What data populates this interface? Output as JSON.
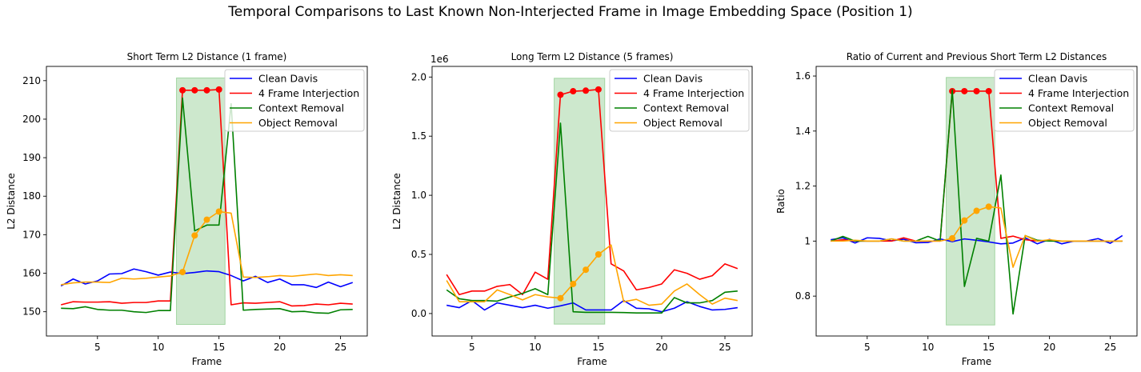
{
  "suptitle": "Temporal Comparisons to Last Known Non-Interjected Frame in Image Embedding Space (Position 1)",
  "legend_labels": [
    "Clean Davis",
    "4 Frame Interjection",
    "Context Removal",
    "Object Removal"
  ],
  "chart_data": [
    {
      "type": "line",
      "title": "Short Term L2 Distance (1 frame)",
      "xlabel": "Frame",
      "ylabel": "L2 Distance",
      "xlim": [
        0.8,
        27.2
      ],
      "ylim": [
        143.7,
        213.7
      ],
      "xticks": [
        5,
        10,
        15,
        20,
        25
      ],
      "yticks": [
        150,
        160,
        170,
        180,
        190,
        200,
        210
      ],
      "offset_label": "",
      "shaded_region": {
        "x": [
          11.5,
          15.5
        ],
        "y": [
          146.7,
          210.7
        ],
        "color": "#2ca02c"
      },
      "legend_position": "upper right",
      "series": [
        {
          "name": "Clean Davis",
          "color": "#0000ff",
          "x": [
            2,
            3,
            4,
            5,
            6,
            7,
            8,
            9,
            10,
            11,
            12,
            13,
            14,
            15,
            16,
            17,
            18,
            19,
            20,
            21,
            22,
            23,
            24,
            25,
            26
          ],
          "y": [
            156.7,
            158.5,
            157.2,
            158.0,
            159.8,
            159.9,
            161.1,
            160.4,
            159.5,
            160.3,
            159.9,
            160.2,
            160.6,
            160.4,
            159.4,
            158.0,
            159.2,
            157.6,
            158.5,
            157.0,
            157.0,
            156.3,
            157.7,
            156.5,
            157.6
          ]
        },
        {
          "name": "4 Frame Interjection",
          "color": "#ff0000",
          "markers": [
            12,
            13,
            14,
            15
          ],
          "x": [
            2,
            3,
            4,
            5,
            6,
            7,
            8,
            9,
            10,
            11,
            12,
            13,
            14,
            15,
            16,
            17,
            18,
            19,
            20,
            21,
            22,
            23,
            24,
            25,
            26
          ],
          "y": [
            151.8,
            152.6,
            152.5,
            152.5,
            152.6,
            152.2,
            152.4,
            152.4,
            152.8,
            152.8,
            207.5,
            207.5,
            207.5,
            207.7,
            151.8,
            152.3,
            152.2,
            152.4,
            152.6,
            151.5,
            151.6,
            152.0,
            151.8,
            152.2,
            152.0
          ]
        },
        {
          "name": "Context Removal",
          "color": "#008000",
          "x": [
            2,
            3,
            4,
            5,
            6,
            7,
            8,
            9,
            10,
            11,
            12,
            13,
            14,
            15,
            16,
            17,
            18,
            19,
            20,
            21,
            22,
            23,
            24,
            25,
            26
          ],
          "y": [
            150.9,
            150.8,
            151.3,
            150.6,
            150.4,
            150.4,
            150.0,
            149.8,
            150.3,
            150.3,
            205.5,
            171.0,
            172.5,
            172.5,
            204.0,
            150.4,
            150.6,
            150.7,
            150.8,
            150.0,
            150.1,
            149.7,
            149.6,
            150.5,
            150.6
          ]
        },
        {
          "name": "Object Removal",
          "color": "#ffa500",
          "markers": [
            12,
            13,
            14,
            15
          ],
          "x": [
            2,
            3,
            4,
            5,
            6,
            7,
            8,
            9,
            10,
            11,
            12,
            13,
            14,
            15,
            16,
            17,
            18,
            19,
            20,
            21,
            22,
            23,
            24,
            25,
            26
          ],
          "y": [
            157.0,
            157.5,
            157.7,
            157.7,
            157.6,
            158.7,
            158.5,
            158.7,
            159.0,
            159.3,
            160.3,
            169.8,
            173.9,
            176.0,
            175.6,
            159.0,
            158.9,
            159.1,
            159.4,
            159.2,
            159.5,
            159.8,
            159.4,
            159.6,
            159.4
          ]
        }
      ]
    },
    {
      "type": "line",
      "title": "Long Term L2 Distance (5 frames)",
      "xlabel": "Frame",
      "ylabel": "L2 Distance",
      "xlim": [
        1.85,
        27.15
      ],
      "ylim": [
        -190000,
        2090000
      ],
      "xticks": [
        5,
        10,
        15,
        20,
        25
      ],
      "yticks": [
        0,
        500000,
        1000000,
        1500000,
        2000000
      ],
      "ytick_labels": [
        "0.0",
        "0.5",
        "1.0",
        "1.5",
        "2.0"
      ],
      "offset_label": "1e6",
      "shaded_region": {
        "x": [
          11.5,
          15.5
        ],
        "y": [
          -90000,
          1990000
        ],
        "color": "#2ca02c"
      },
      "legend_position": "upper right",
      "series": [
        {
          "name": "Clean Davis",
          "color": "#0000ff",
          "x": [
            3,
            4,
            5,
            6,
            7,
            8,
            9,
            10,
            11,
            12,
            13,
            14,
            15,
            16,
            17,
            18,
            19,
            20,
            21,
            22,
            23,
            24,
            25,
            26
          ],
          "y": [
            70000,
            50000,
            110000,
            30000,
            90000,
            70000,
            50000,
            70000,
            45000,
            65000,
            90000,
            30000,
            30000,
            30000,
            110000,
            45000,
            40000,
            15000,
            45000,
            100000,
            60000,
            30000,
            35000,
            50000
          ]
        },
        {
          "name": "4 Frame Interjection",
          "color": "#ff0000",
          "markers": [
            12,
            13,
            14,
            15
          ],
          "x": [
            3,
            4,
            5,
            6,
            7,
            8,
            9,
            10,
            11,
            12,
            13,
            14,
            15,
            16,
            17,
            18,
            19,
            20,
            21,
            22,
            23,
            24,
            25,
            26
          ],
          "y": [
            330000,
            160000,
            190000,
            190000,
            230000,
            245000,
            160000,
            350000,
            290000,
            1850000,
            1880000,
            1885000,
            1895000,
            420000,
            360000,
            200000,
            220000,
            250000,
            370000,
            340000,
            290000,
            320000,
            420000,
            380000
          ]
        },
        {
          "name": "Context Removal",
          "color": "#008000",
          "x": [
            3,
            4,
            5,
            6,
            7,
            8,
            9,
            10,
            11,
            12,
            13,
            14,
            15,
            16,
            17,
            18,
            19,
            20,
            21,
            22,
            23,
            24,
            25,
            26
          ],
          "y": [
            200000,
            125000,
            110000,
            110000,
            105000,
            140000,
            170000,
            210000,
            160000,
            1610000,
            15000,
            10000,
            10000,
            10000,
            8000,
            5000,
            5000,
            5000,
            135000,
            90000,
            90000,
            110000,
            180000,
            190000
          ]
        },
        {
          "name": "Object Removal",
          "color": "#ffa500",
          "markers": [
            12,
            13,
            14,
            15
          ],
          "x": [
            3,
            4,
            5,
            6,
            7,
            8,
            9,
            10,
            11,
            12,
            13,
            14,
            15,
            16,
            17,
            18,
            19,
            20,
            21,
            22,
            23,
            24,
            25,
            26
          ],
          "y": [
            280000,
            100000,
            100000,
            100000,
            200000,
            160000,
            115000,
            160000,
            140000,
            130000,
            250000,
            370000,
            500000,
            580000,
            100000,
            120000,
            70000,
            80000,
            190000,
            250000,
            160000,
            80000,
            130000,
            110000
          ]
        }
      ]
    },
    {
      "type": "line",
      "title": "Ratio of Current and Previous Short Term L2 Distances",
      "xlabel": "Frame",
      "ylabel": "Ratio",
      "xlim": [
        0.8,
        27.2
      ],
      "ylim": [
        0.655,
        1.635
      ],
      "xticks": [
        5,
        10,
        15,
        20,
        25
      ],
      "yticks": [
        0.8,
        1.0,
        1.2,
        1.4,
        1.6
      ],
      "offset_label": "",
      "shaded_region": {
        "x": [
          11.5,
          15.5
        ],
        "y": [
          0.695,
          1.595
        ],
        "color": "#2ca02c"
      },
      "legend_position": "upper right",
      "series": [
        {
          "name": "Clean Davis",
          "color": "#0000ff",
          "x": [
            2,
            3,
            4,
            5,
            6,
            7,
            8,
            9,
            10,
            11,
            12,
            13,
            14,
            15,
            16,
            17,
            18,
            19,
            20,
            21,
            22,
            23,
            24,
            25,
            26
          ],
          "y": [
            1.005,
            1.012,
            0.993,
            1.012,
            1.01,
            1.001,
            1.007,
            0.994,
            0.995,
            1.008,
            0.998,
            1.008,
            1.003,
            0.997,
            0.99,
            0.993,
            1.012,
            0.99,
            1.006,
            0.99,
            1.0,
            1.0,
            1.009,
            0.992,
            1.02
          ]
        },
        {
          "name": "4 Frame Interjection",
          "color": "#ff0000",
          "markers": [
            12,
            13,
            14,
            15
          ],
          "x": [
            2,
            3,
            4,
            5,
            6,
            7,
            8,
            9,
            10,
            11,
            12,
            13,
            14,
            15,
            16,
            17,
            18,
            19,
            20,
            21,
            22,
            23,
            24,
            25,
            26
          ],
          "y": [
            1.0,
            1.005,
            1.0,
            1.0,
            1.0,
            1.0,
            1.012,
            1.0,
            1.0,
            1.0,
            1.545,
            1.545,
            1.545,
            1.545,
            1.01,
            1.018,
            1.005,
            1.0,
            1.003,
            1.0,
            1.0,
            1.0,
            1.0,
            1.0,
            1.0
          ]
        },
        {
          "name": "Context Removal",
          "color": "#008000",
          "x": [
            2,
            3,
            4,
            5,
            6,
            7,
            8,
            9,
            10,
            11,
            12,
            13,
            14,
            15,
            16,
            17,
            18,
            19,
            20,
            21,
            22,
            23,
            24,
            25,
            26
          ],
          "y": [
            1.0,
            1.017,
            1.0,
            1.0,
            1.0,
            1.008,
            1.0,
            1.0,
            1.017,
            1.0,
            1.55,
            0.835,
            1.01,
            1.0,
            1.24,
            0.735,
            1.02,
            1.003,
            1.0,
            1.0,
            1.0,
            1.0,
            1.0,
            1.0,
            1.0
          ]
        },
        {
          "name": "Object Removal",
          "color": "#ffa500",
          "markers": [
            12,
            13,
            14,
            15
          ],
          "x": [
            2,
            3,
            4,
            5,
            6,
            7,
            8,
            9,
            10,
            11,
            12,
            13,
            14,
            15,
            16,
            17,
            18,
            19,
            20,
            21,
            22,
            23,
            24,
            25,
            26
          ],
          "y": [
            1.0,
            1.0,
            1.003,
            1.0,
            1.0,
            1.008,
            1.0,
            1.0,
            1.0,
            1.0,
            1.01,
            1.075,
            1.11,
            1.125,
            1.12,
            0.905,
            1.02,
            1.0,
            1.005,
            1.0,
            1.0,
            1.0,
            1.0,
            1.0,
            1.0
          ]
        }
      ]
    }
  ]
}
